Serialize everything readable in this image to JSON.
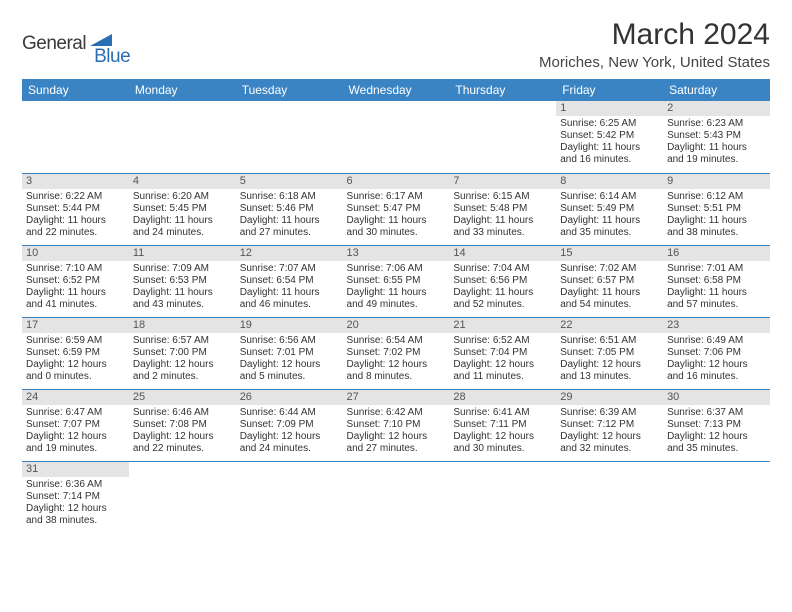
{
  "logo": {
    "part1": "General",
    "part2": "Blue",
    "triangle_color": "#2a6fb5"
  },
  "title": "March 2024",
  "location": "Moriches, New York, United States",
  "header_bg": "#3b84c4",
  "daybar_bg": "#e4e4e4",
  "day_headers": [
    "Sunday",
    "Monday",
    "Tuesday",
    "Wednesday",
    "Thursday",
    "Friday",
    "Saturday"
  ],
  "weeks": [
    [
      null,
      null,
      null,
      null,
      null,
      {
        "n": "1",
        "sr": "Sunrise: 6:25 AM",
        "ss": "Sunset: 5:42 PM",
        "d1": "Daylight: 11 hours",
        "d2": "and 16 minutes."
      },
      {
        "n": "2",
        "sr": "Sunrise: 6:23 AM",
        "ss": "Sunset: 5:43 PM",
        "d1": "Daylight: 11 hours",
        "d2": "and 19 minutes."
      }
    ],
    [
      {
        "n": "3",
        "sr": "Sunrise: 6:22 AM",
        "ss": "Sunset: 5:44 PM",
        "d1": "Daylight: 11 hours",
        "d2": "and 22 minutes."
      },
      {
        "n": "4",
        "sr": "Sunrise: 6:20 AM",
        "ss": "Sunset: 5:45 PM",
        "d1": "Daylight: 11 hours",
        "d2": "and 24 minutes."
      },
      {
        "n": "5",
        "sr": "Sunrise: 6:18 AM",
        "ss": "Sunset: 5:46 PM",
        "d1": "Daylight: 11 hours",
        "d2": "and 27 minutes."
      },
      {
        "n": "6",
        "sr": "Sunrise: 6:17 AM",
        "ss": "Sunset: 5:47 PM",
        "d1": "Daylight: 11 hours",
        "d2": "and 30 minutes."
      },
      {
        "n": "7",
        "sr": "Sunrise: 6:15 AM",
        "ss": "Sunset: 5:48 PM",
        "d1": "Daylight: 11 hours",
        "d2": "and 33 minutes."
      },
      {
        "n": "8",
        "sr": "Sunrise: 6:14 AM",
        "ss": "Sunset: 5:49 PM",
        "d1": "Daylight: 11 hours",
        "d2": "and 35 minutes."
      },
      {
        "n": "9",
        "sr": "Sunrise: 6:12 AM",
        "ss": "Sunset: 5:51 PM",
        "d1": "Daylight: 11 hours",
        "d2": "and 38 minutes."
      }
    ],
    [
      {
        "n": "10",
        "sr": "Sunrise: 7:10 AM",
        "ss": "Sunset: 6:52 PM",
        "d1": "Daylight: 11 hours",
        "d2": "and 41 minutes."
      },
      {
        "n": "11",
        "sr": "Sunrise: 7:09 AM",
        "ss": "Sunset: 6:53 PM",
        "d1": "Daylight: 11 hours",
        "d2": "and 43 minutes."
      },
      {
        "n": "12",
        "sr": "Sunrise: 7:07 AM",
        "ss": "Sunset: 6:54 PM",
        "d1": "Daylight: 11 hours",
        "d2": "and 46 minutes."
      },
      {
        "n": "13",
        "sr": "Sunrise: 7:06 AM",
        "ss": "Sunset: 6:55 PM",
        "d1": "Daylight: 11 hours",
        "d2": "and 49 minutes."
      },
      {
        "n": "14",
        "sr": "Sunrise: 7:04 AM",
        "ss": "Sunset: 6:56 PM",
        "d1": "Daylight: 11 hours",
        "d2": "and 52 minutes."
      },
      {
        "n": "15",
        "sr": "Sunrise: 7:02 AM",
        "ss": "Sunset: 6:57 PM",
        "d1": "Daylight: 11 hours",
        "d2": "and 54 minutes."
      },
      {
        "n": "16",
        "sr": "Sunrise: 7:01 AM",
        "ss": "Sunset: 6:58 PM",
        "d1": "Daylight: 11 hours",
        "d2": "and 57 minutes."
      }
    ],
    [
      {
        "n": "17",
        "sr": "Sunrise: 6:59 AM",
        "ss": "Sunset: 6:59 PM",
        "d1": "Daylight: 12 hours",
        "d2": "and 0 minutes."
      },
      {
        "n": "18",
        "sr": "Sunrise: 6:57 AM",
        "ss": "Sunset: 7:00 PM",
        "d1": "Daylight: 12 hours",
        "d2": "and 2 minutes."
      },
      {
        "n": "19",
        "sr": "Sunrise: 6:56 AM",
        "ss": "Sunset: 7:01 PM",
        "d1": "Daylight: 12 hours",
        "d2": "and 5 minutes."
      },
      {
        "n": "20",
        "sr": "Sunrise: 6:54 AM",
        "ss": "Sunset: 7:02 PM",
        "d1": "Daylight: 12 hours",
        "d2": "and 8 minutes."
      },
      {
        "n": "21",
        "sr": "Sunrise: 6:52 AM",
        "ss": "Sunset: 7:04 PM",
        "d1": "Daylight: 12 hours",
        "d2": "and 11 minutes."
      },
      {
        "n": "22",
        "sr": "Sunrise: 6:51 AM",
        "ss": "Sunset: 7:05 PM",
        "d1": "Daylight: 12 hours",
        "d2": "and 13 minutes."
      },
      {
        "n": "23",
        "sr": "Sunrise: 6:49 AM",
        "ss": "Sunset: 7:06 PM",
        "d1": "Daylight: 12 hours",
        "d2": "and 16 minutes."
      }
    ],
    [
      {
        "n": "24",
        "sr": "Sunrise: 6:47 AM",
        "ss": "Sunset: 7:07 PM",
        "d1": "Daylight: 12 hours",
        "d2": "and 19 minutes."
      },
      {
        "n": "25",
        "sr": "Sunrise: 6:46 AM",
        "ss": "Sunset: 7:08 PM",
        "d1": "Daylight: 12 hours",
        "d2": "and 22 minutes."
      },
      {
        "n": "26",
        "sr": "Sunrise: 6:44 AM",
        "ss": "Sunset: 7:09 PM",
        "d1": "Daylight: 12 hours",
        "d2": "and 24 minutes."
      },
      {
        "n": "27",
        "sr": "Sunrise: 6:42 AM",
        "ss": "Sunset: 7:10 PM",
        "d1": "Daylight: 12 hours",
        "d2": "and 27 minutes."
      },
      {
        "n": "28",
        "sr": "Sunrise: 6:41 AM",
        "ss": "Sunset: 7:11 PM",
        "d1": "Daylight: 12 hours",
        "d2": "and 30 minutes."
      },
      {
        "n": "29",
        "sr": "Sunrise: 6:39 AM",
        "ss": "Sunset: 7:12 PM",
        "d1": "Daylight: 12 hours",
        "d2": "and 32 minutes."
      },
      {
        "n": "30",
        "sr": "Sunrise: 6:37 AM",
        "ss": "Sunset: 7:13 PM",
        "d1": "Daylight: 12 hours",
        "d2": "and 35 minutes."
      }
    ],
    [
      {
        "n": "31",
        "sr": "Sunrise: 6:36 AM",
        "ss": "Sunset: 7:14 PM",
        "d1": "Daylight: 12 hours",
        "d2": "and 38 minutes."
      },
      null,
      null,
      null,
      null,
      null,
      null
    ]
  ]
}
